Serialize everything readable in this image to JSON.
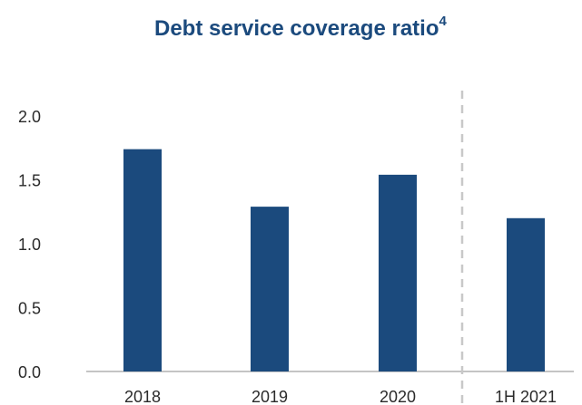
{
  "chart_data": {
    "type": "bar",
    "title": "Debt service coverage ratio",
    "title_superscript": "4",
    "categories": [
      "2018",
      "2019",
      "2020",
      "1H 2021"
    ],
    "values": [
      1.74,
      1.29,
      1.54,
      1.2
    ],
    "yticks": [
      "0.0",
      "0.5",
      "1.0",
      "1.5",
      "2.0"
    ],
    "ylim": [
      0,
      2.0
    ],
    "grid": false,
    "legend": "none",
    "separator_before_category": "1H 2021",
    "bar_color": "#1b4a7d",
    "separator_color": "#c8c8c8",
    "axis_color": "#b0b0b0"
  }
}
